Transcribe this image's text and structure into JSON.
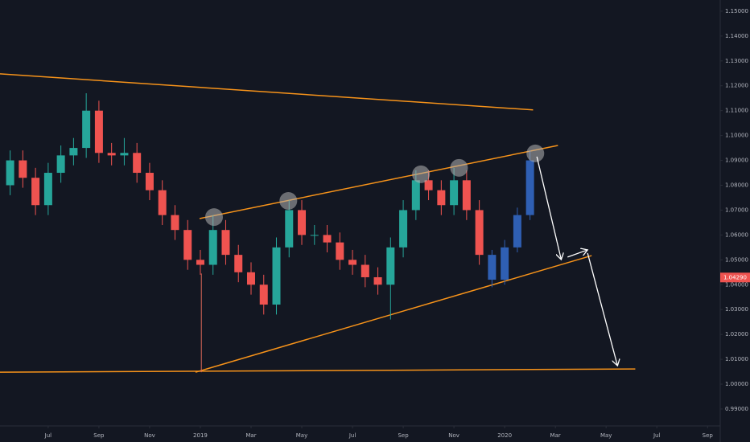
{
  "chart_data": {
    "type": "candlestick",
    "xlim": [
      4.1,
      32.5
    ],
    "ylim": [
      0.9832,
      1.1545
    ],
    "xticks": [
      {
        "value": 6,
        "label": "Jul"
      },
      {
        "value": 8,
        "label": "Sep"
      },
      {
        "value": 10,
        "label": "Nov"
      },
      {
        "value": 12,
        "label": "2019"
      },
      {
        "value": 14,
        "label": "Mar"
      },
      {
        "value": 16,
        "label": "May"
      },
      {
        "value": 18,
        "label": "Jul"
      },
      {
        "value": 20,
        "label": "Sep"
      },
      {
        "value": 22,
        "label": "Nov"
      },
      {
        "value": 24,
        "label": "2020"
      },
      {
        "value": 26,
        "label": "Mar"
      },
      {
        "value": 28,
        "label": "May"
      },
      {
        "value": 30,
        "label": "Jul"
      },
      {
        "value": 32,
        "label": "Sep"
      }
    ],
    "yticks": [
      {
        "value": 0.99,
        "label": "0.99000"
      },
      {
        "value": 1.0,
        "label": "1.00000"
      },
      {
        "value": 1.01,
        "label": "1.01000"
      },
      {
        "value": 1.02,
        "label": "1.02000"
      },
      {
        "value": 1.03,
        "label": "1.03000"
      },
      {
        "value": 1.04,
        "label": "1.04000"
      },
      {
        "value": 1.05,
        "label": "1.05000"
      },
      {
        "value": 1.06,
        "label": "1.06000"
      },
      {
        "value": 1.07,
        "label": "1.07000"
      },
      {
        "value": 1.08,
        "label": "1.08000"
      },
      {
        "value": 1.09,
        "label": "1.09000"
      },
      {
        "value": 1.1,
        "label": "1.10000"
      },
      {
        "value": 1.11,
        "label": "1.11000"
      },
      {
        "value": 1.12,
        "label": "1.12000"
      },
      {
        "value": 1.13,
        "label": "1.13000"
      },
      {
        "value": 1.14,
        "label": "1.14000"
      },
      {
        "value": 1.15,
        "label": "1.15000"
      }
    ],
    "up_color": "#26a69a",
    "down_color": "#ef5350",
    "series": [
      {
        "x": [
          4.5,
          5,
          5.5,
          6,
          6.5,
          7,
          7.5,
          8,
          8.5,
          9,
          9.5,
          10,
          10.5,
          11,
          11.5,
          12,
          12.5,
          13,
          13.5,
          14,
          14.5,
          15,
          15.5,
          16,
          16.5,
          17,
          17.5,
          18,
          18.5,
          19,
          19.5,
          20,
          20.5,
          21,
          21.5,
          22,
          22.5,
          23
        ],
        "open": [
          1.08,
          1.09,
          1.083,
          1.072,
          1.085,
          1.092,
          1.095,
          1.11,
          1.093,
          1.092,
          1.093,
          1.085,
          1.078,
          1.068,
          1.062,
          1.05,
          1.048,
          1.062,
          1.052,
          1.045,
          1.04,
          1.032,
          1.055,
          1.07,
          1.06,
          1.06,
          1.057,
          1.05,
          1.048,
          1.043,
          1.04,
          1.055,
          1.07,
          1.082,
          1.078,
          1.072,
          1.082,
          1.07
        ],
        "high": [
          1.094,
          1.094,
          1.087,
          1.089,
          1.096,
          1.099,
          1.117,
          1.114,
          1.097,
          1.099,
          1.097,
          1.089,
          1.082,
          1.072,
          1.066,
          1.054,
          1.068,
          1.066,
          1.056,
          1.049,
          1.044,
          1.059,
          1.074,
          1.074,
          1.064,
          1.064,
          1.061,
          1.054,
          1.052,
          1.047,
          1.059,
          1.074,
          1.086,
          1.086,
          1.082,
          1.087,
          1.086,
          1.074
        ],
        "low": [
          1.076,
          1.079,
          1.068,
          1.068,
          1.081,
          1.088,
          1.091,
          1.089,
          1.088,
          1.088,
          1.081,
          1.074,
          1.064,
          1.058,
          1.046,
          1.044,
          1.044,
          1.048,
          1.041,
          1.036,
          1.028,
          1.028,
          1.051,
          1.056,
          1.056,
          1.053,
          1.046,
          1.044,
          1.039,
          1.036,
          1.026,
          1.051,
          1.066,
          1.074,
          1.068,
          1.068,
          1.066,
          1.048
        ],
        "close": [
          1.09,
          1.083,
          1.072,
          1.085,
          1.092,
          1.095,
          1.11,
          1.093,
          1.092,
          1.093,
          1.085,
          1.078,
          1.068,
          1.062,
          1.05,
          1.048,
          1.062,
          1.052,
          1.045,
          1.04,
          1.032,
          1.055,
          1.07,
          1.06,
          1.06,
          1.057,
          1.05,
          1.048,
          1.043,
          1.04,
          1.055,
          1.07,
          1.082,
          1.078,
          1.072,
          1.082,
          1.07,
          1.052
        ]
      },
      {
        "color": "#2f5fb3",
        "x": [
          23.5,
          24,
          24.5,
          25
        ],
        "open": [
          1.052,
          1.042,
          1.055,
          1.068
        ],
        "high": [
          1.054,
          1.058,
          1.071,
          1.094
        ],
        "low": [
          1.039,
          1.04,
          1.053,
          1.066
        ],
        "close": [
          1.042,
          1.055,
          1.068,
          1.09
        ]
      }
    ],
    "lines": [
      {
        "color": "#f7931a",
        "x": [
          4.1,
          25.12
        ],
        "y": [
          1.1248,
          1.1103
        ]
      },
      {
        "color": "#f7931a",
        "x": [
          11.97,
          26.1
        ],
        "y": [
          1.0666,
          1.096
        ]
      },
      {
        "color": "#f7931a",
        "x": [
          11.81,
          27.43
        ],
        "y": [
          1.0048,
          1.0517
        ]
      },
      {
        "color": "#f7931a",
        "x": [
          4.1,
          29.15
        ],
        "y": [
          1.0048,
          1.0061
        ]
      },
      {
        "color": "#e06a5a",
        "x": [
          12.04,
          12.04
        ],
        "y": [
          1.0445,
          1.0048
        ]
      }
    ],
    "arrows": [
      {
        "color": "#ffffff",
        "x": [
          25.27,
          26.23
        ],
        "y": [
          1.0915,
          1.0501
        ]
      },
      {
        "color": "#ffffff",
        "x": [
          26.48,
          27.27
        ],
        "y": [
          1.0511,
          1.054
        ]
      },
      {
        "color": "#ffffff",
        "x": [
          27.27,
          28.45
        ],
        "y": [
          1.0527,
          1.0074
        ]
      }
    ],
    "highlights": {
      "x": [
        12.54,
        15.47,
        20.7,
        22.2,
        25.21
      ],
      "y": [
        1.0672,
        1.0737,
        1.0844,
        1.087,
        1.0928
      ]
    },
    "price_tag": {
      "value": 1.0429,
      "label": "1.04290"
    }
  }
}
